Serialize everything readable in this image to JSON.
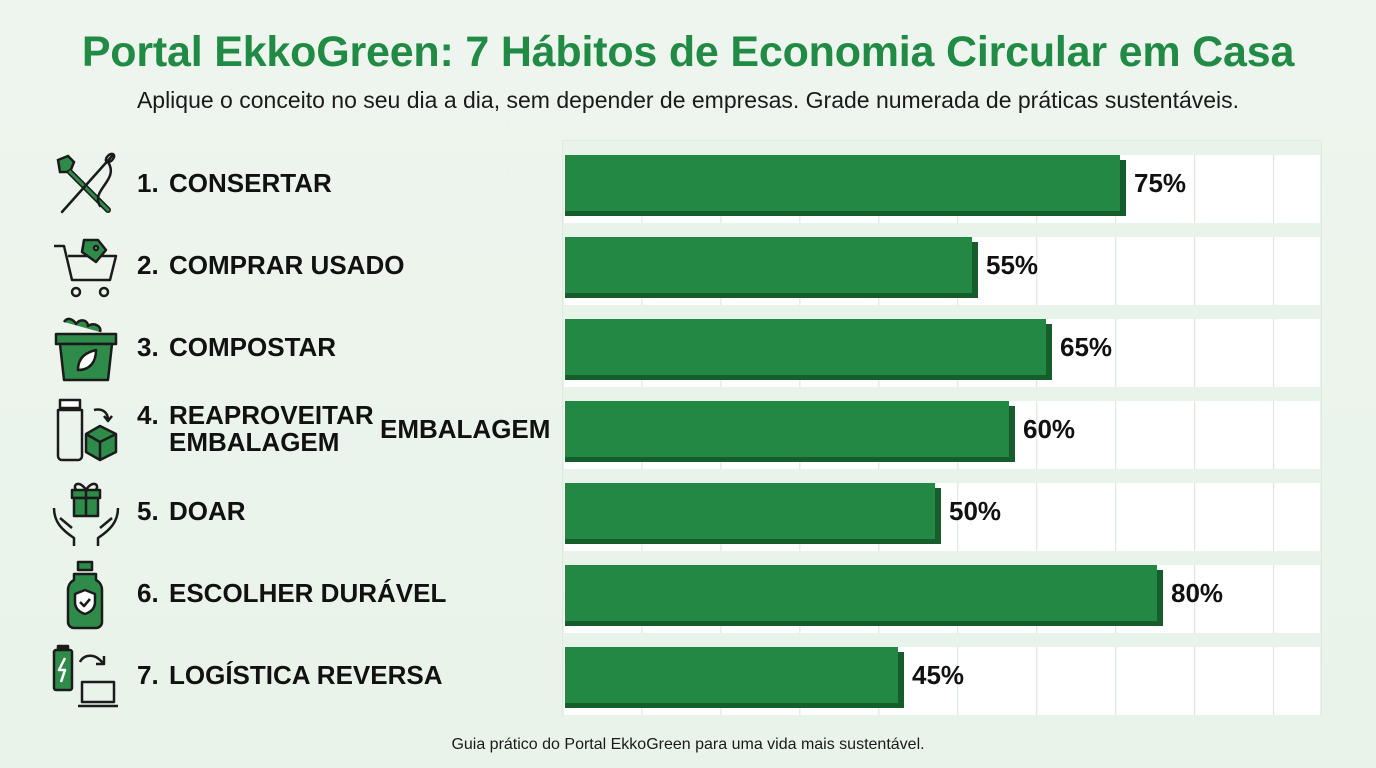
{
  "header": {
    "title": "Portal EkkoGreen: 7 Hábitos de Economia Circular em Casa",
    "subtitle": "Aplique o conceito no seu dia a dia, sem depender de empresas. Grade numerada de práticas sustentáveis."
  },
  "footer": "Guia prático do Portal EkkoGreen para uma vida mais sustentável.",
  "stray_label": "EMBALAGEM",
  "colors": {
    "accent": "#218a45",
    "bar": "#238843",
    "bar_shadow": "#155e2c"
  },
  "rows": [
    {
      "num": "1.",
      "label": "CONSERTAR",
      "icon": "wrench-needle-icon"
    },
    {
      "num": "2.",
      "label": "COMPRAR USADO",
      "icon": "shopping-cart-tag-icon"
    },
    {
      "num": "3.",
      "label": "COMPOSTAR",
      "icon": "compost-bin-icon"
    },
    {
      "num": "4.",
      "label": "REAPROVEITAR",
      "label2": "EMBALAGEM",
      "icon": "jar-box-icon"
    },
    {
      "num": "5.",
      "label": "DOAR",
      "icon": "gift-hands-icon"
    },
    {
      "num": "6.",
      "label": "ESCOLHER DURÁVEL",
      "icon": "bottle-shield-icon"
    },
    {
      "num": "7.",
      "label": "LOGÍSTICA REVERSA",
      "icon": "battery-laptop-icon"
    }
  ],
  "chart_data": {
    "type": "bar",
    "orientation": "horizontal",
    "categories": [
      "1. CONSERTAR",
      "2. COMPRAR USADO",
      "3. COMPOSTAR",
      "4. REAPROVEITAR EMBALAGEM",
      "5. DOAR",
      "6. ESCOLHER DURÁVEL",
      "7. LOGÍSTICA REVERSA"
    ],
    "values": [
      75,
      55,
      65,
      60,
      50,
      80,
      45
    ],
    "value_labels": [
      "75%",
      "55%",
      "65%",
      "60%",
      "50%",
      "80%",
      "45%"
    ],
    "xlim": [
      0,
      100
    ],
    "grid": true,
    "legend": "none"
  }
}
